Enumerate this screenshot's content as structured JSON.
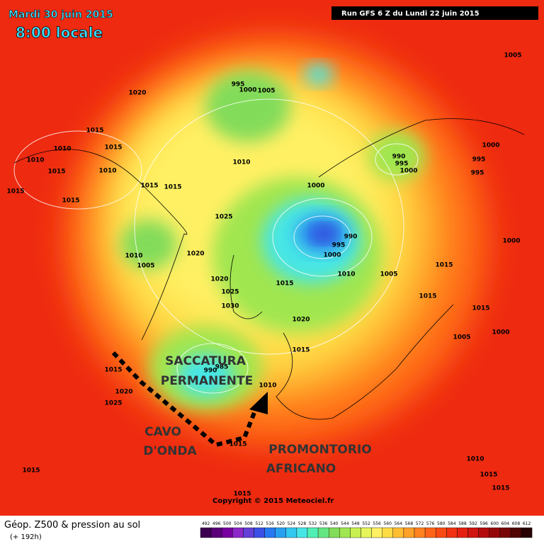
{
  "header": {
    "date": "Mardi 30 juin 2015",
    "time": "8:00 locale",
    "run": "Run GFS 6 Z du Lundi 22 juin 2015"
  },
  "annotations": {
    "trough": [
      "SACCATURA",
      "PERMANENTE"
    ],
    "wave": [
      "CAVO",
      "D'ONDA"
    ],
    "ridge": [
      "PROMONTORIO",
      "AFRICANO"
    ]
  },
  "pressure_labels": [
    "1005",
    "995",
    "1000",
    "1005",
    "1020",
    "1015",
    "1010",
    "1015",
    "1010",
    "1010",
    "1015",
    "1015",
    "1015",
    "1015",
    "1015",
    "1010",
    "990",
    "995",
    "1000",
    "1000",
    "995",
    "995",
    "1000",
    "1025",
    "990",
    "995",
    "1000",
    "1010",
    "1005",
    "1020",
    "1010",
    "1005",
    "1015",
    "1000",
    "1020",
    "1025",
    "1015",
    "1030",
    "1015",
    "1015",
    "1000",
    "1005",
    "1020",
    "1015",
    "1010",
    "1015",
    "1020",
    "1025",
    "990",
    "985",
    "1015",
    "1015",
    "1010",
    "1015",
    "1015",
    "1015"
  ],
  "copyright": "Copyright © 2015 Meteociel.fr",
  "footer": {
    "title": "Géop. Z500 & pression au sol",
    "lead": "(+ 192h)"
  },
  "scale": {
    "values": [
      492,
      496,
      500,
      504,
      508,
      512,
      516,
      520,
      524,
      528,
      532,
      536,
      540,
      544,
      548,
      552,
      556,
      560,
      564,
      568,
      572,
      576,
      580,
      584,
      588,
      592,
      596,
      600,
      604,
      608,
      612
    ],
    "colors": [
      "#3c0050",
      "#5a0078",
      "#7800a0",
      "#8c28c8",
      "#6440d8",
      "#3c50e6",
      "#2878f0",
      "#28a0f0",
      "#32c8f0",
      "#46e6e6",
      "#50f0b4",
      "#64e682",
      "#82dc5a",
      "#a0e650",
      "#c8f050",
      "#e6f55a",
      "#fff064",
      "#ffdc46",
      "#ffbe32",
      "#ffa028",
      "#ff8220",
      "#ff6418",
      "#f84a14",
      "#f03212",
      "#e62010",
      "#d01410",
      "#b40c0c",
      "#960808",
      "#780606",
      "#500404",
      "#280202"
    ]
  }
}
